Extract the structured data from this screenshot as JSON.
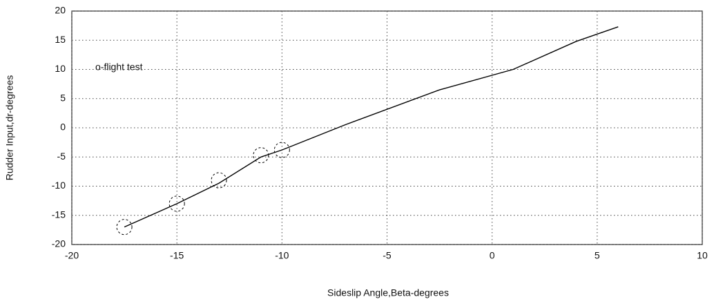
{
  "chart_data": {
    "type": "line",
    "xlabel": "Sideslip Angle,Beta-degrees",
    "ylabel": "Rudder Input,dr-degrees",
    "annotation": "o-flight test",
    "xlim": [
      -20,
      10
    ],
    "xticks": [
      -20,
      -15,
      -10,
      -5,
      0,
      5,
      10
    ],
    "ylim": [
      -20,
      20
    ],
    "yticks": [
      -20,
      -15,
      -10,
      -5,
      0,
      5,
      10,
      15,
      20
    ],
    "grid": true,
    "series": [
      {
        "type": "line",
        "color": "#000000",
        "x": [
          -17.5,
          -15,
          -13,
          -11,
          -10,
          -7,
          -2.5,
          1,
          4,
          6
        ],
        "values": [
          -17,
          -13,
          -9.5,
          -5,
          -3.8,
          0.5,
          6.5,
          10,
          14.8,
          17.3
        ]
      },
      {
        "type": "scatter",
        "color": "#000000",
        "x": [
          -17.5,
          -15,
          -13,
          -11,
          -10
        ],
        "values": [
          -17,
          -13,
          -9,
          -4.7,
          -3.8
        ]
      }
    ]
  }
}
